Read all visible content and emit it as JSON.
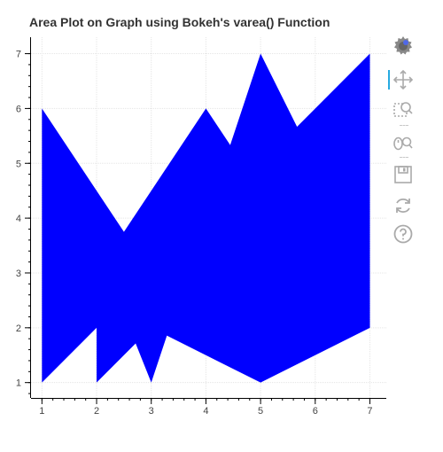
{
  "chart_data": {
    "type": "area",
    "title": "Area Plot on Graph using Bokeh's varea() Function",
    "xlim": [
      0.8,
      7.3
    ],
    "ylim": [
      0.72,
      7.3
    ],
    "x_ticks": [
      1,
      2,
      3,
      4,
      5,
      6,
      7
    ],
    "y_ticks": [
      1,
      2,
      3,
      4,
      5,
      6,
      7
    ],
    "grid": true,
    "fill_color": "#0000ff",
    "series": [
      {
        "x": [
          1,
          3,
          5,
          7
        ],
        "y1": [
          1,
          3,
          5,
          7
        ],
        "y2": [
          6,
          2,
          1,
          2
        ]
      },
      {
        "x": [
          1,
          3,
          5,
          6
        ],
        "y1": [
          6,
          1,
          7,
          5
        ],
        "y2": [
          6,
          3,
          4,
          4
        ]
      },
      {
        "x": [
          2,
          4,
          6
        ],
        "y1": [
          1,
          3,
          5
        ],
        "y2": [
          3,
          6,
          3
        ]
      }
    ]
  },
  "toolbar": {
    "tools": [
      "bokeh-logo-icon",
      "pan-icon",
      "box-zoom-icon",
      "wheel-zoom-icon",
      "save-icon",
      "reset-icon",
      "help-icon"
    ],
    "active_color": "#26aae1"
  }
}
